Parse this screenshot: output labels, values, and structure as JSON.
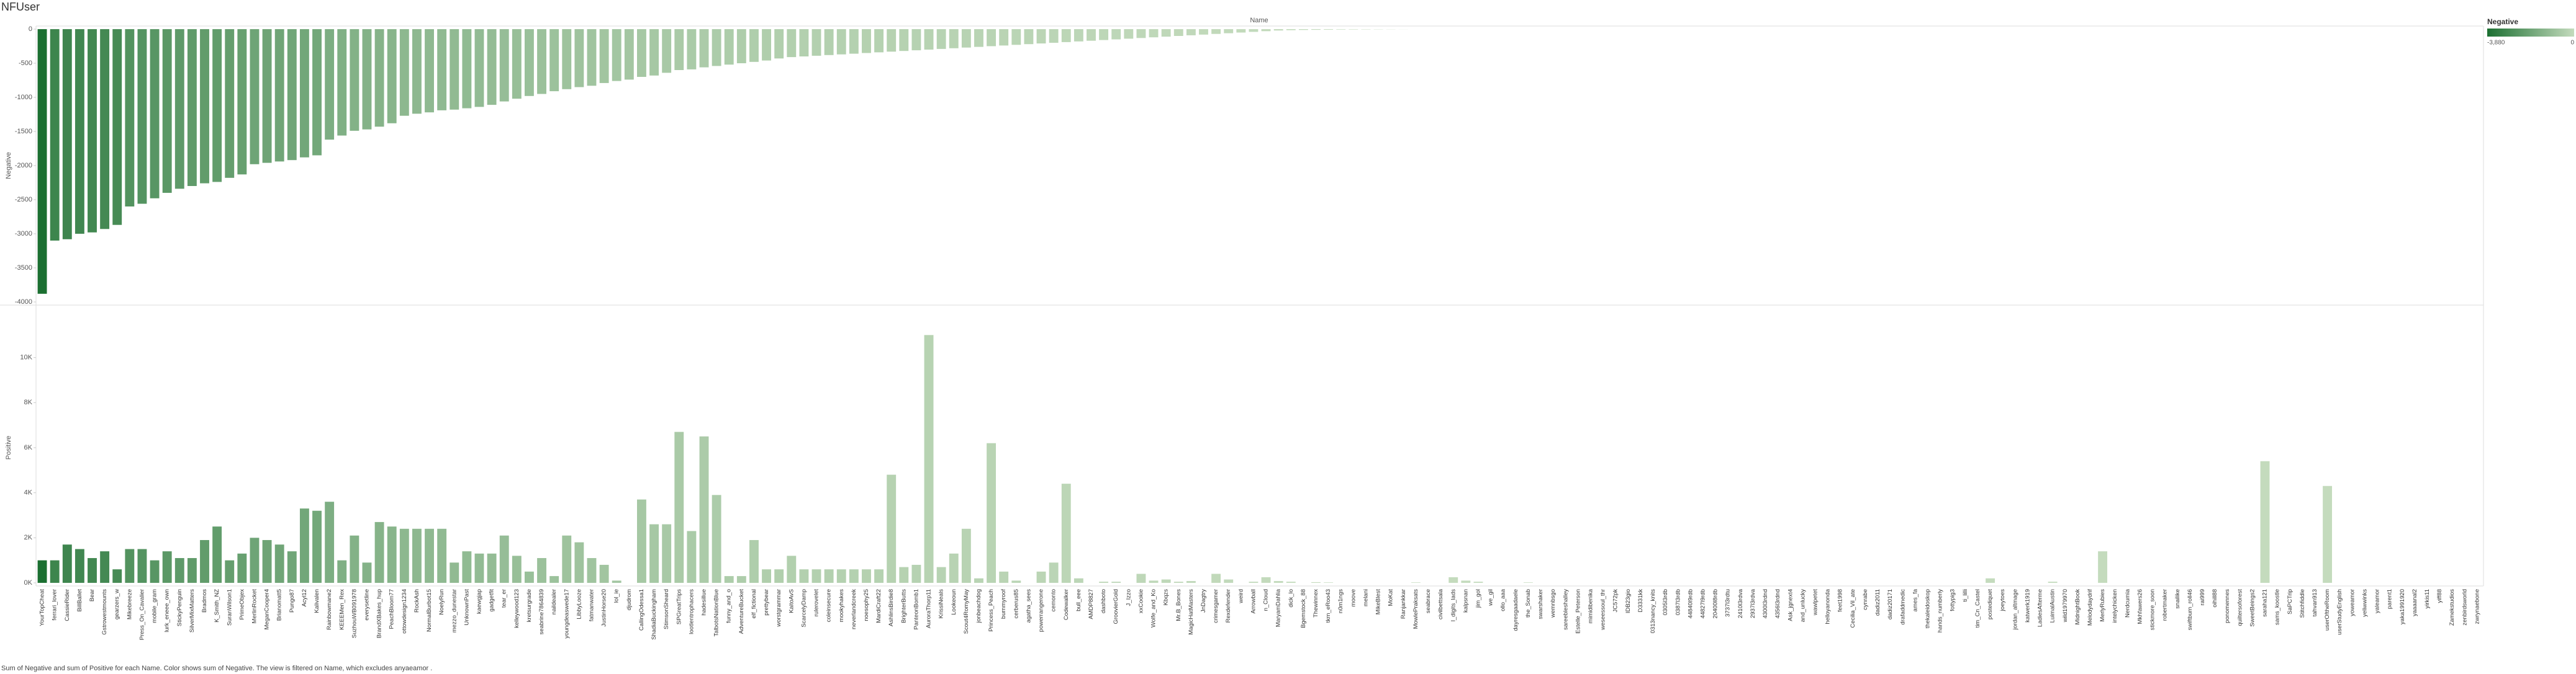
{
  "chart_data": {
    "type": "bar",
    "title": "NFUser",
    "x_label": "Name",
    "caption": "Sum of Negative and sum of Positive for each Name.  Color shows sum of Negative. The view is filtered on Name, which excludes anyaeamor .",
    "categories": [
      "YourTopCheat",
      "ferrari_lover",
      "CassieRider",
      "BillBallet",
      "Bear",
      "Gstrowestmounts",
      "gearzers_w",
      "Mikebreeze",
      "Press_On_Cavalier",
      "mobile_gram",
      "lurk_eneee_own",
      "StickyPenguin",
      "SilverMixMatters",
      "Bradmos",
      "K_Smith_NZ",
      "SuranWilson1",
      "PrimeObjex",
      "MerlinRocket",
      "MeganCooper4",
      "Brianomatt5",
      "Pungo87",
      "Acyl12",
      "Kalivalen",
      "Rainbowmane2",
      "KEEEMen_Rex",
      "SuzhouWB091978",
      "everysetline",
      "BrandXBakes_hup",
      "PeachBloom77",
      "ottowdesign1234",
      "RockAsh",
      "NormalBurbot15",
      "NoelyRun",
      "mezzo_dunestar",
      "UnknownPast",
      "kaewgjap",
      "gadgetfit",
      "tear_er",
      "kelleywood123",
      "kretsurgrade",
      "seabrine7864839",
      "naildealer",
      "youngdeaswede17",
      "LibbyLooze",
      "fatmanwater",
      "JustinHorse20",
      "lol_ie",
      "djudrom",
      "CallingOdessa1",
      "ShadiaBuckingham",
      "StimsonSheard",
      "SPGreatTrips",
      "lootlentrophacers",
      "hadesillue",
      "TalbotsNationBlue",
      "funny_and_o",
      "AdventureBucket",
      "elf_fictional",
      "prettybear",
      "worstgrammar",
      "KaitoAvS",
      "ScarcelyDamp",
      "rulerovelet",
      "coleinsecure",
      "mookyhakes",
      "neverlandcreek",
      "noesophy25",
      "MardiCraft22",
      "AshlinsBirdie8",
      "BrighterButts",
      "PanteonBomb1",
      "AuroraThorp11",
      "KrissiNeals",
      "Lookeoun",
      "Scout4RomyMay",
      "jonbeachdog",
      "Princess_Peach",
      "burnmyroof",
      "cerberus85",
      "agatha_sees",
      "powerrangerone",
      "cemonto",
      "Codewalker",
      "bull_eee",
      "AMDP8827",
      "dashboto",
      "GroovierGold",
      "J_Izzo",
      "xxCookie",
      "Wolfe_and_Ko",
      "Kbqzs",
      "Mr.B_Bones",
      "MagicHatMasters",
      "JnDagtry",
      "crimesgamer",
      "Rexdefender",
      "weird",
      "Arrowball",
      "n_Cloud",
      "MaryamDahlia",
      "dick_lo",
      "Bgemstock_88",
      "Thewinnex",
      "tkrn_eRoo43",
      "n0m1ngs",
      "moove",
      "melani",
      "MikeBlest",
      "MoKat",
      "Ranjankkar",
      "MowlePraksats",
      "seabrace",
      "civilbettsala",
      "l_digits_lads",
      "kalpsnan",
      "jim_gol",
      "we_gil",
      "ollo_aaa",
      "dayresgaadaele",
      "the_Sonab",
      "swarshaker",
      "wemnbsgo",
      "sareebleshalley",
      "Estelle_Peterson",
      "mimidibenika",
      "weseessoul_thr",
      "JC572pk",
      "IDB23gio",
      "D3331kk",
      "0313nancy_knits",
      "0305l3rdb",
      "0387l3rdb",
      "44840l9rdb",
      "44827l9rdb",
      "20400l8rdb",
      "3737l3rdtu",
      "2410l3rdva",
      "2937l3rdva",
      "4300l3rdnd",
      "4356l3rdnd",
      "Ask_jgnext4",
      "and_unlucky",
      "wawlpetet",
      "helloyanonda",
      "feet1998",
      "Cecilia_Vil_ate",
      "cynrabe",
      "dadiz2011",
      "dadiz20171",
      "drafaddmedic",
      "ames_fa",
      "thekaleidoskop",
      "hands_numberly",
      "fottypig3",
      "ti_lilli",
      "tim_Cn_Castel",
      "postediquet",
      "joeytoes",
      "jordan_altmage",
      "katwerk1919",
      "LadiesAfterme",
      "LuimalAustin",
      "wild1979970",
      "MidnightBook",
      "Melodydaydrif",
      "MerlyRubies",
      "intelychicken",
      "Nerdcumia",
      "Mkhfawers26",
      "stickmore_soon",
      "robertmaker",
      "snailike",
      "swiftburn_roll46",
      "rai999",
      "oihill88",
      "ponomennes",
      "quiltersoforest",
      "SweetBeings2",
      "saraha121",
      "sams_koostle",
      "SaPCTrip",
      "Stitchfiddle",
      "tahvan913",
      "userOftheRoom",
      "userStudyEnglish",
      "yoweamor",
      "yeliwwinks",
      "yaleamor",
      "parent1",
      "yaka1991920",
      "yaaaanal2",
      "yirkis11",
      "yiff88",
      "Zamekstudios",
      "zenbirdsworld",
      "zwrynaebone"
    ],
    "series": [
      {
        "name": "Negative",
        "ylim": [
          -4000,
          0
        ],
        "yticks": [
          0,
          -500,
          -1000,
          -1500,
          -2000,
          -2500,
          -3000,
          -3500,
          -4000
        ],
        "values": [
          -3880,
          -3100,
          -3080,
          -3000,
          -2980,
          -2930,
          -2870,
          -2600,
          -2560,
          -2480,
          -2400,
          -2340,
          -2300,
          -2260,
          -2240,
          -2180,
          -2130,
          -1980,
          -1960,
          -1940,
          -1920,
          -1880,
          -1850,
          -1620,
          -1560,
          -1490,
          -1470,
          -1430,
          -1380,
          -1270,
          -1240,
          -1220,
          -1190,
          -1180,
          -1160,
          -1140,
          -1110,
          -1060,
          -1020,
          -980,
          -950,
          -910,
          -880,
          -850,
          -830,
          -790,
          -760,
          -740,
          -700,
          -680,
          -640,
          -600,
          -590,
          -560,
          -540,
          -520,
          -500,
          -480,
          -460,
          -430,
          -410,
          -400,
          -390,
          -380,
          -370,
          -360,
          -350,
          -340,
          -330,
          -320,
          -310,
          -300,
          -290,
          -280,
          -270,
          -260,
          -250,
          -240,
          -230,
          -220,
          -210,
          -200,
          -190,
          -180,
          -170,
          -160,
          -150,
          -140,
          -130,
          -120,
          -110,
          -100,
          -90,
          -80,
          -70,
          -60,
          -50,
          -40,
          -30,
          -20,
          -15,
          -12,
          -10,
          -8,
          -6,
          -5,
          -4,
          -3,
          -2,
          -1,
          0,
          0,
          0,
          0,
          0,
          0,
          0,
          0,
          0,
          0,
          0,
          0,
          0,
          0,
          0,
          0,
          0,
          0,
          0,
          0,
          0,
          0,
          0,
          0,
          0,
          0,
          0,
          0,
          0,
          0,
          0,
          0,
          0,
          0,
          0,
          0,
          0,
          0,
          0,
          0,
          0,
          0,
          0,
          0,
          0,
          0,
          0,
          0,
          0,
          0,
          0,
          0,
          0,
          0,
          0,
          0,
          0,
          0,
          0,
          0,
          0,
          0,
          0,
          0,
          0,
          0,
          0,
          0,
          0,
          0,
          0,
          0,
          0,
          0,
          0,
          0,
          0,
          0,
          0,
          0,
          0,
          0,
          0,
          0,
          0,
          0
        ]
      },
      {
        "name": "Positive",
        "ylim": [
          0,
          12000
        ],
        "yticks": [
          {
            "value": 0,
            "label": "0K"
          },
          {
            "value": 2000,
            "label": "2K"
          },
          {
            "value": 4000,
            "label": "4K"
          },
          {
            "value": 6000,
            "label": "6K"
          },
          {
            "value": 8000,
            "label": "8K"
          },
          {
            "value": 10000,
            "label": "10K"
          }
        ],
        "values": [
          1000,
          1000,
          1700,
          1500,
          1100,
          1400,
          600,
          1500,
          1500,
          1000,
          1400,
          1100,
          1100,
          1900,
          2500,
          1000,
          1300,
          2000,
          1900,
          1700,
          1400,
          3300,
          3200,
          3600,
          1000,
          2100,
          900,
          2700,
          2500,
          2400,
          2400,
          2400,
          2400,
          900,
          1400,
          1300,
          1300,
          2100,
          1200,
          500,
          1100,
          300,
          2100,
          1800,
          1100,
          800,
          100,
          0,
          3700,
          2600,
          2600,
          6700,
          2300,
          6500,
          3900,
          300,
          300,
          1900,
          600,
          600,
          1200,
          600,
          600,
          600,
          600,
          600,
          600,
          600,
          4800,
          700,
          800,
          11000,
          700,
          1300,
          2400,
          200,
          6200,
          500,
          100,
          0,
          500,
          900,
          4400,
          200,
          0,
          50,
          50,
          0,
          400,
          100,
          150,
          50,
          80,
          0,
          400,
          150,
          0,
          50,
          250,
          80,
          50,
          0,
          30,
          20,
          0,
          0,
          0,
          0,
          0,
          0,
          20,
          0,
          0,
          250,
          100,
          50,
          0,
          0,
          0,
          20,
          0,
          0,
          0,
          0,
          0,
          0,
          0,
          0,
          0,
          0,
          0,
          0,
          0,
          0,
          0,
          0,
          0,
          0,
          0,
          0,
          0,
          0,
          0,
          0,
          0,
          0,
          0,
          0,
          0,
          0,
          0,
          0,
          0,
          0,
          0,
          0,
          200,
          0,
          0,
          0,
          0,
          50,
          0,
          0,
          0,
          1400,
          0,
          0,
          0,
          0,
          0,
          0,
          0,
          0,
          0,
          0,
          0,
          0,
          5400,
          0,
          0,
          0,
          0,
          4300,
          0,
          0,
          0,
          0,
          0,
          0,
          0,
          0,
          0,
          0,
          0,
          0
        ]
      }
    ],
    "color_legend": {
      "title": "Negative",
      "colors": [
        "#1b6f31",
        "#c4dbbd"
      ],
      "min": {
        "value": -3880,
        "label": "-3,880"
      },
      "max": 0
    },
    "grid": false
  }
}
